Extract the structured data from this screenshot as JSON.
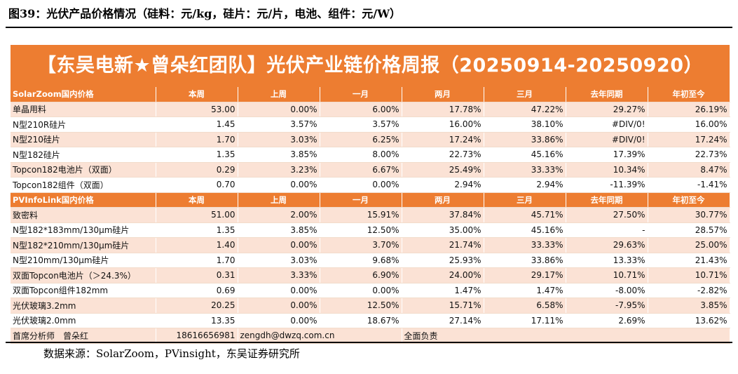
{
  "caption": "图39：光伏产品价格情况（硅料：元/kg，硅片：元/片，电池、组件：元/W）",
  "source": "数据来源：SolarZoom，PVinsight，东吴证券研究所",
  "colors": {
    "accent": "#ed7d31",
    "band": "#fbe2d5"
  },
  "chart_data": {
    "type": "table",
    "title": "【东吴电新★曾朵红团队】光伏产业链价格周报（20250914-20250920）",
    "columns": [
      "本周",
      "上周",
      "一月",
      "两月",
      "三月",
      "去年同期",
      "年初至今"
    ],
    "sections": [
      {
        "name": "SolarZoom国内价格",
        "rows": [
          {
            "item": "单晶用料",
            "values": [
              "53.00",
              "0.00%",
              "6.00%",
              "17.78%",
              "47.22%",
              "29.27%",
              "26.19%"
            ]
          },
          {
            "item": "N型210R硅片",
            "values": [
              "1.45",
              "3.57%",
              "3.57%",
              "16.00%",
              "38.10%",
              "#DIV/0!",
              "16.00%"
            ]
          },
          {
            "item": "N型210硅片",
            "values": [
              "1.70",
              "3.03%",
              "6.25%",
              "17.24%",
              "33.86%",
              "#DIV/0!",
              "17.24%"
            ]
          },
          {
            "item": "N型182硅片",
            "values": [
              "1.35",
              "3.85%",
              "8.00%",
              "22.73%",
              "45.16%",
              "17.39%",
              "22.73%"
            ]
          },
          {
            "item": "Topcon182电池片（双面）",
            "values": [
              "0.29",
              "3.23%",
              "6.67%",
              "25.49%",
              "33.33%",
              "10.34%",
              "8.47%"
            ]
          },
          {
            "item": "Topcon182组件（双面）",
            "values": [
              "0.70",
              "0.00%",
              "0.00%",
              "2.94%",
              "2.94%",
              "-11.39%",
              "-1.41%"
            ]
          }
        ]
      },
      {
        "name": "PVInfoLink国内价格",
        "rows": [
          {
            "item": "致密料",
            "values": [
              "51.00",
              "2.00%",
              "15.91%",
              "37.84%",
              "45.71%",
              "27.50%",
              "30.77%"
            ]
          },
          {
            "item": "N型182*183mm/130μm硅片",
            "values": [
              "1.35",
              "3.85%",
              "12.50%",
              "35.00%",
              "45.16%",
              "-",
              "28.57%"
            ]
          },
          {
            "item": "N型182*210mm/130μm硅片",
            "values": [
              "1.40",
              "0.00%",
              "3.70%",
              "21.74%",
              "33.33%",
              "29.63%",
              "25.00%"
            ]
          },
          {
            "item": "N型210mm/130μm硅片",
            "values": [
              "1.70",
              "3.03%",
              "9.68%",
              "25.93%",
              "33.86%",
              "13.33%",
              "21.43%"
            ]
          },
          {
            "item": "双面Topcon电池片（＞24.3%）",
            "values": [
              "0.31",
              "3.33%",
              "6.90%",
              "24.00%",
              "29.17%",
              "10.71%",
              "10.71%"
            ]
          },
          {
            "item": "双面Topcon组件182mm",
            "values": [
              "0.69",
              "0.00%",
              "0.00%",
              "1.47%",
              "1.47%",
              "-8.00%",
              "-2.82%"
            ]
          },
          {
            "item": "光伏玻璃3.2mm",
            "values": [
              "20.25",
              "0.00%",
              "12.50%",
              "15.71%",
              "6.58%",
              "-7.95%",
              "3.85%"
            ]
          },
          {
            "item": "光伏玻璃2.0mm",
            "values": [
              "13.35",
              "0.00%",
              "18.67%",
              "27.14%",
              "17.11%",
              "2.69%",
              "13.62%"
            ]
          }
        ]
      }
    ],
    "footer": {
      "analyst": "首席分析师　曾朵红",
      "phone": "18616656981",
      "email": "zengdh@dwzq.com.cn",
      "role": "全面负责"
    }
  }
}
